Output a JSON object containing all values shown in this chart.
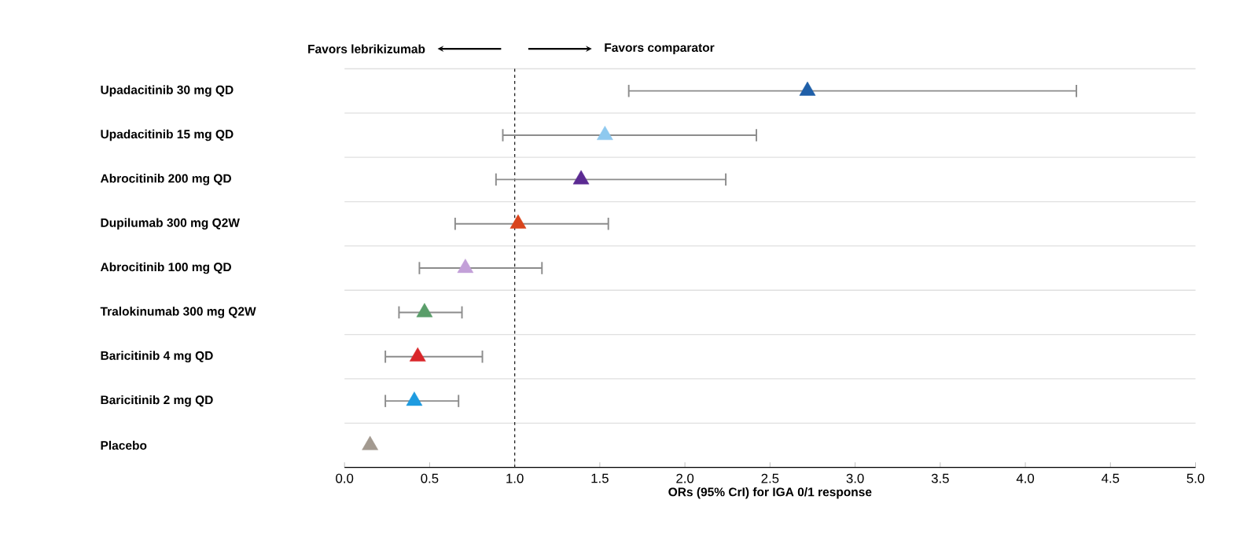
{
  "chart_data": {
    "type": "scatter",
    "orientation": "horizontal",
    "categories": [
      "Upadacitinib 30 mg QD",
      "Upadacitinib 15 mg QD",
      "Abrocitinib 200 mg QD",
      "Dupilumab 300 mg Q2W",
      "Abrocitinib 100 mg QD",
      "Tralokinumab 300 mg Q2W",
      "Baricitinib 4 mg QD",
      "Baricitinib 2 mg QD",
      "Placebo"
    ],
    "values": [
      2.72,
      1.53,
      1.39,
      1.02,
      0.71,
      0.47,
      0.43,
      0.41,
      0.15
    ],
    "errors": [
      [
        1.67,
        4.3
      ],
      [
        0.93,
        2.42
      ],
      [
        0.89,
        2.24
      ],
      [
        0.65,
        1.55
      ],
      [
        0.44,
        1.16
      ],
      [
        0.32,
        0.69
      ],
      [
        0.24,
        0.81
      ],
      [
        0.24,
        0.67
      ],
      null
    ],
    "colors": [
      "#1f5fa8",
      "#8ec9ef",
      "#5b2a92",
      "#d9441c",
      "#c3a0d8",
      "#5a9e6a",
      "#d9262a",
      "#1e9be0",
      "#a39a90"
    ],
    "marker": "triangle",
    "grid": "y",
    "xlim": [
      0,
      5
    ],
    "xticks": [
      {
        "value": 0,
        "label": "0.0"
      },
      {
        "value": 0.5,
        "label": "0.5"
      },
      {
        "value": 1,
        "label": "1.0"
      },
      {
        "value": 1.5,
        "label": "1.5"
      },
      {
        "value": 2,
        "label": "2.0"
      },
      {
        "value": 2.5,
        "label": "2.5"
      },
      {
        "value": 3,
        "label": "3.0"
      },
      {
        "value": 3.5,
        "label": "3.5"
      },
      {
        "value": 4,
        "label": "4.0"
      },
      {
        "value": 4.5,
        "label": "4.5"
      },
      {
        "value": 5,
        "label": "5.0"
      }
    ],
    "xlabel": "ORs (95% CrI) for IGA 0/1 response",
    "ref_lines": [
      {
        "axis": "x",
        "value": 1,
        "line_style": "dashed",
        "color": "#222222"
      }
    ],
    "annotations": [
      "Favors lebrikizumab",
      "Favors comparator"
    ]
  }
}
